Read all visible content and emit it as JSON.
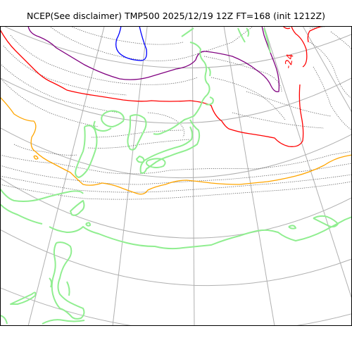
{
  "figure": {
    "title": "NCEP(See disclaimer) TMP500 2025/12/19 12Z FT=168 (init 1212Z)"
  },
  "map": {
    "contour_labels": [
      "-24"
    ],
    "colors": {
      "graticule": "#b0b0b0",
      "coastline": "#90ee90",
      "isotherm_dotted": "#555555",
      "isotherm_red": "#ff0000",
      "isotherm_orange": "#ffa500",
      "isotherm_purple": "#800080",
      "isotherm_blue": "#0000ff",
      "frame": "#000000"
    }
  }
}
